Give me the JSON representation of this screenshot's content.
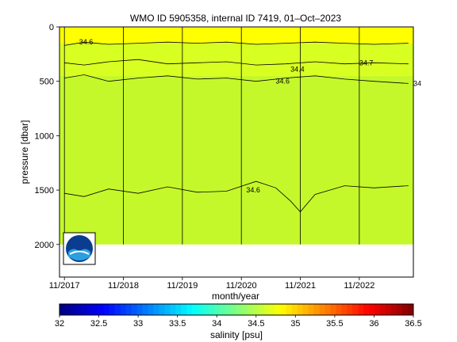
{
  "chart_data": {
    "type": "heatmap",
    "title": "WMO ID 5905358, internal ID 7419, 01–Oct–2023",
    "xlabel": "month/year",
    "ylabel": "pressure [dbar]",
    "x_tick_labels": [
      "11/2017",
      "11/2018",
      "11/2019",
      "11/2020",
      "11/2021",
      "11/2022"
    ],
    "x_ticks": [
      "2017-11",
      "2018-11",
      "2019-11",
      "2020-11",
      "2021-11",
      "2022-11"
    ],
    "xlim": [
      "2017-10",
      "2023-10"
    ],
    "y_ticks": [
      0,
      500,
      1000,
      1500,
      2000
    ],
    "y_tick_labels": [
      "0",
      "500",
      "1000",
      "1500",
      "2000"
    ],
    "ylim": [
      2300,
      0
    ],
    "y_reversed": true,
    "data_max_pressure": 2000,
    "profile_dates": [
      "2017-11",
      "2018-11",
      "2019-11",
      "2020-11",
      "2021-11",
      "2022-11"
    ],
    "contour_labels": [
      {
        "text": "34.6",
        "x": "2018-02",
        "y": 140
      },
      {
        "text": "34.7",
        "x": "2022-11",
        "y": 330
      },
      {
        "text": "34.4",
        "x": "2021-09",
        "y": 390
      },
      {
        "text": "34.6",
        "x": "2021-06",
        "y": 500
      },
      {
        "text": "34",
        "x": "2023-10",
        "y": 520
      },
      {
        "text": "34.6",
        "x": "2020-12",
        "y": 1500
      }
    ],
    "contours": [
      {
        "label": "34.6",
        "points": [
          [
            "2017-11",
            170
          ],
          [
            "2018-03",
            140
          ],
          [
            "2018-08",
            160
          ],
          [
            "2019-02",
            150
          ],
          [
            "2019-08",
            140
          ],
          [
            "2020-02",
            150
          ],
          [
            "2020-08",
            140
          ],
          [
            "2021-02",
            160
          ],
          [
            "2021-08",
            150
          ],
          [
            "2022-02",
            140
          ],
          [
            "2022-08",
            150
          ],
          [
            "2023-02",
            160
          ],
          [
            "2023-09",
            150
          ]
        ]
      },
      {
        "label": "34.7",
        "points": [
          [
            "2017-11",
            330
          ],
          [
            "2018-03",
            350
          ],
          [
            "2018-08",
            320
          ],
          [
            "2019-02",
            300
          ],
          [
            "2019-08",
            340
          ],
          [
            "2020-02",
            330
          ],
          [
            "2020-08",
            320
          ],
          [
            "2021-02",
            350
          ],
          [
            "2021-08",
            340
          ],
          [
            "2022-02",
            320
          ],
          [
            "2022-08",
            340
          ],
          [
            "2023-02",
            330
          ],
          [
            "2023-09",
            340
          ]
        ]
      },
      {
        "label": "34.6",
        "points": [
          [
            "2017-11",
            470
          ],
          [
            "2018-03",
            440
          ],
          [
            "2018-08",
            500
          ],
          [
            "2019-02",
            470
          ],
          [
            "2019-08",
            450
          ],
          [
            "2020-02",
            480
          ],
          [
            "2020-08",
            470
          ],
          [
            "2021-02",
            500
          ],
          [
            "2021-08",
            470
          ],
          [
            "2022-02",
            450
          ],
          [
            "2022-08",
            480
          ],
          [
            "2023-02",
            500
          ],
          [
            "2023-09",
            520
          ]
        ]
      },
      {
        "label": "34.6",
        "points": [
          [
            "2017-11",
            1530
          ],
          [
            "2018-03",
            1560
          ],
          [
            "2018-08",
            1490
          ],
          [
            "2019-02",
            1530
          ],
          [
            "2019-08",
            1470
          ],
          [
            "2020-02",
            1520
          ],
          [
            "2020-08",
            1510
          ],
          [
            "2021-02",
            1420
          ],
          [
            "2021-06",
            1480
          ],
          [
            "2021-09",
            1600
          ],
          [
            "2021-11",
            1700
          ],
          [
            "2022-02",
            1540
          ],
          [
            "2022-08",
            1460
          ],
          [
            "2023-02",
            1480
          ],
          [
            "2023-09",
            1460
          ]
        ]
      }
    ],
    "colorbar": {
      "label": "salinity [psu]",
      "min": 32,
      "max": 36.5,
      "ticks": [
        32,
        32.5,
        33,
        33.5,
        34,
        34.5,
        35,
        35.5,
        36,
        36.5
      ],
      "tick_labels": [
        "32",
        "32.5",
        "33",
        "33.5",
        "34",
        "34.5",
        "35",
        "35.5",
        "36",
        "36.5"
      ],
      "colormap": "jet"
    },
    "field_colors": {
      "surface_layer": "#ffff00",
      "upper_layer": "#d8ff22",
      "deep_layer": "#c5f82a"
    },
    "logo": "noaa-logo",
    "grid": false
  }
}
